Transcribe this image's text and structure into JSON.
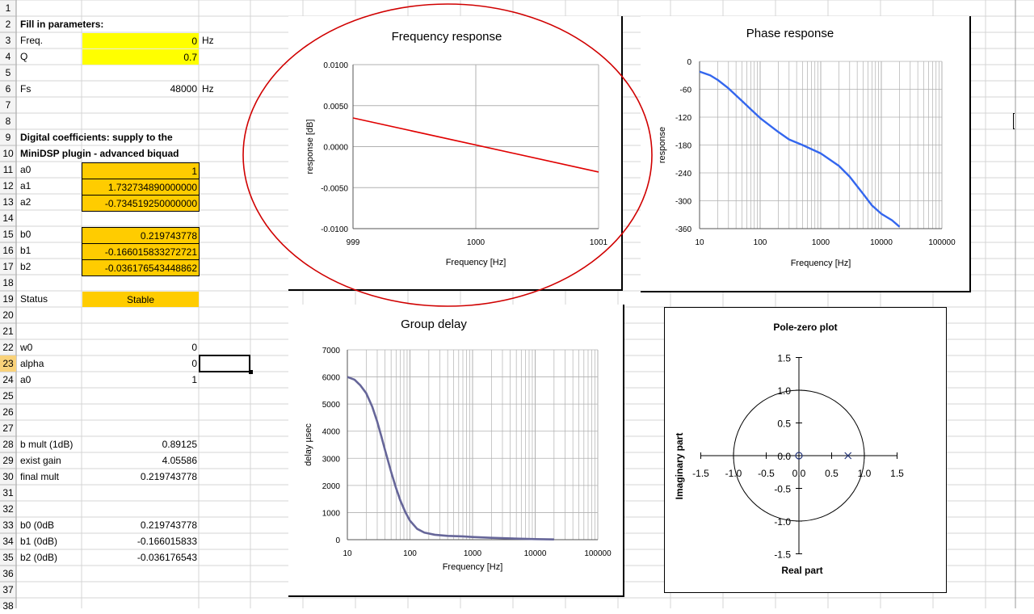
{
  "rows": [
    "1",
    "2",
    "3",
    "4",
    "5",
    "6",
    "7",
    "8",
    "9",
    "10",
    "11",
    "12",
    "13",
    "14",
    "15",
    "16",
    "17",
    "18",
    "19",
    "20",
    "21",
    "22",
    "23",
    "24",
    "25",
    "26",
    "27",
    "28",
    "29",
    "30",
    "31",
    "32",
    "33",
    "34",
    "35",
    "36",
    "37",
    "38"
  ],
  "params": {
    "heading": "Fill in parameters:",
    "freq_label": "Freq.",
    "freq_value": "0",
    "freq_unit": "Hz",
    "q_label": "Q",
    "q_value": "0.7",
    "fs_label": "Fs",
    "fs_value": "48000",
    "fs_unit": "Hz"
  },
  "coeffs": {
    "heading1": "Digital coefficients: supply to the",
    "heading2": "MiniDSP plugin - advanced biquad",
    "a0_label": "a0",
    "a0_value": "1",
    "a1_label": "a1",
    "a1_value": "1.732734890000000",
    "a2_label": "a2",
    "a2_value": "-0.734519250000000",
    "b0_label": "b0",
    "b0_value": "0.219743778",
    "b1_label": "b1",
    "b1_value": "-0.166015833272721",
    "b2_label": "b2",
    "b2_value": "-0.036176543448862",
    "status_label": "Status",
    "status_value": "Stable"
  },
  "calc": {
    "w0_label": "w0",
    "w0_value": "0",
    "alpha_label": "alpha",
    "alpha_value": "0",
    "a0_label": "a0",
    "a0_value": "1",
    "bmult_label": "b mult (1dB)",
    "bmult_value": "0.89125",
    "gain_label": "exist gain",
    "gain_value": "4.05586",
    "final_label": "final mult",
    "final_value": "0.219743778",
    "b0db_label": "b0 (0dB",
    "b0db_value": "0.219743778",
    "b1db_label": "b1 (0dB)",
    "b1db_value": "-0.166015833",
    "b2db_label": "b2 (0dB)",
    "b2db_value": "-0.036176543"
  },
  "colors": {
    "yellow": "#ffff00",
    "orange": "#ffcc00",
    "red_line": "#e00000",
    "blue_line": "#3366ee",
    "purple_line": "#666699",
    "annotation": "#d00000"
  },
  "chart_data": [
    {
      "type": "line",
      "title": "Frequency response",
      "xlabel": "Frequency [Hz]",
      "ylabel": "response [dB]",
      "xlim": [
        999,
        1001
      ],
      "ylim": [
        -0.01,
        0.01
      ],
      "xticks": [
        "999",
        "1000",
        "1001"
      ],
      "yticks": [
        "0.0100",
        "0.0050",
        "0.0000",
        "-0.0050",
        "-0.0100"
      ],
      "x": [
        999,
        1001
      ],
      "y": [
        0.0035,
        -0.0031
      ]
    },
    {
      "type": "line",
      "title": "Phase response",
      "xlabel": "Frequency [Hz]",
      "ylabel": "response",
      "xscale": "log",
      "xlim": [
        10,
        100000
      ],
      "ylim": [
        -360,
        0
      ],
      "xticks": [
        "10",
        "100",
        "1000",
        "10000",
        "100000"
      ],
      "yticks": [
        "0",
        "-60",
        "-120",
        "-180",
        "-240",
        "-300",
        "-360"
      ],
      "x": [
        10,
        15,
        20,
        30,
        50,
        70,
        100,
        200,
        300,
        500,
        1000,
        2000,
        3000,
        5000,
        7000,
        10000,
        15000,
        20000
      ],
      "y": [
        -22,
        -30,
        -40,
        -58,
        -85,
        -103,
        -122,
        -152,
        -168,
        -180,
        -198,
        -225,
        -248,
        -285,
        -310,
        -328,
        -342,
        -356
      ]
    },
    {
      "type": "line",
      "title": "Group delay",
      "xlabel": "Frequency [Hz]",
      "ylabel": "delay µsec",
      "xscale": "log",
      "xlim": [
        10,
        100000
      ],
      "ylim": [
        0,
        7000
      ],
      "xticks": [
        "10",
        "100",
        "1000",
        "10000",
        "100000"
      ],
      "yticks": [
        "7000",
        "6000",
        "5000",
        "4000",
        "3000",
        "2000",
        "1000",
        "0"
      ],
      "x": [
        10,
        13,
        16,
        20,
        25,
        30,
        35,
        40,
        50,
        60,
        70,
        85,
        100,
        130,
        170,
        250,
        400,
        700,
        1000,
        2000,
        5000,
        10000,
        20000
      ],
      "y": [
        6000,
        5900,
        5700,
        5400,
        4900,
        4350,
        3800,
        3300,
        2500,
        1900,
        1450,
        1000,
        700,
        400,
        260,
        180,
        140,
        120,
        100,
        70,
        40,
        20,
        10
      ]
    },
    {
      "type": "scatter",
      "title": "Pole-zero plot",
      "xlabel": "Real part",
      "ylabel": "Imaginary part",
      "xlim": [
        -1.5,
        1.5
      ],
      "ylim": [
        -1.5,
        1.5
      ],
      "xticks": [
        "-1.5",
        "-1.0",
        "-0.5",
        "0.0",
        "0.5",
        "1.0",
        "1.5"
      ],
      "yticks": [
        "1.5",
        "1.0",
        "0.5",
        "0.0",
        "-0.5",
        "-1.0",
        "-1.5"
      ],
      "zeros": [
        {
          "x": 0,
          "y": 0
        }
      ],
      "poles": [
        {
          "x": 0.75,
          "y": 0
        }
      ],
      "unit_circle": true
    }
  ]
}
